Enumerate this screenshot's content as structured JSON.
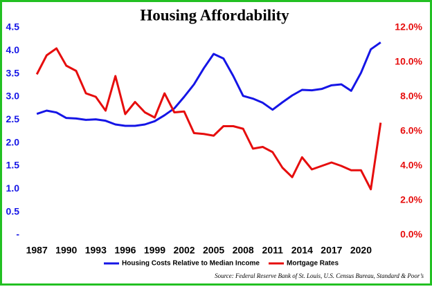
{
  "chart_data": {
    "type": "line",
    "title": "Housing Affordability",
    "source": "Source: Federal Reserve Bank of St. Louis, U.S. Census Bureau, Standard & Poor’s",
    "x": [
      1987,
      1988,
      1989,
      1990,
      1991,
      1992,
      1993,
      1994,
      1995,
      1996,
      1997,
      1998,
      1999,
      2000,
      2001,
      2002,
      2003,
      2004,
      2005,
      2006,
      2007,
      2008,
      2009,
      2010,
      2011,
      2012,
      2013,
      2014,
      2015,
      2016,
      2017,
      2018,
      2019,
      2020,
      2021,
      2022
    ],
    "xlim": [
      1986,
      2023
    ],
    "xticks": [
      1987,
      1990,
      1993,
      1996,
      1999,
      2002,
      2005,
      2008,
      2011,
      2014,
      2017,
      2020
    ],
    "ylim": [
      0,
      4.5
    ],
    "yticks": [
      {
        "value": 0,
        "label": "-"
      },
      0.5,
      {
        "value": 1,
        "label": "1.0"
      },
      1.5,
      {
        "value": 2,
        "label": "2.0"
      },
      2.5,
      {
        "value": 3,
        "label": "3.0"
      },
      3.5,
      {
        "value": 4,
        "label": "4.0"
      },
      4.5
    ],
    "y2lim": [
      0,
      12
    ],
    "y2ticks": [
      {
        "value": 0,
        "label": "0.0%"
      },
      {
        "value": 2,
        "label": "2.0%"
      },
      {
        "value": 4,
        "label": "4.0%"
      },
      {
        "value": 6,
        "label": "6.0%"
      },
      {
        "value": 8,
        "label": "8.0%"
      },
      {
        "value": 10,
        "label": "10.0%"
      },
      {
        "value": 12,
        "label": "12.0%"
      }
    ],
    "grid": false,
    "legend": "bottom",
    "series": [
      {
        "name": "Housing Costs Relative to Median Income",
        "color": "#1515e6",
        "axis": "y",
        "values": [
          2.63,
          2.7,
          2.66,
          2.54,
          2.53,
          2.5,
          2.51,
          2.48,
          2.4,
          2.37,
          2.37,
          2.4,
          2.47,
          2.6,
          2.75,
          3.0,
          3.27,
          3.62,
          3.93,
          3.83,
          3.45,
          3.02,
          2.96,
          2.87,
          2.72,
          2.88,
          3.03,
          3.15,
          3.14,
          3.17,
          3.25,
          3.27,
          3.13,
          3.52,
          4.03,
          4.18
        ]
      },
      {
        "name": "Mortgage Rates",
        "color": "#e60d0d",
        "axis": "y2",
        "values": [
          9.3,
          10.4,
          10.8,
          9.8,
          9.5,
          8.2,
          8.0,
          7.2,
          9.2,
          7.0,
          7.7,
          7.1,
          6.8,
          8.2,
          7.1,
          7.15,
          5.9,
          5.85,
          5.75,
          6.3,
          6.3,
          6.15,
          5.0,
          5.1,
          4.8,
          3.9,
          3.35,
          4.5,
          3.8,
          4.0,
          4.2,
          4.0,
          3.75,
          3.75,
          2.65,
          6.5
        ]
      }
    ]
  }
}
